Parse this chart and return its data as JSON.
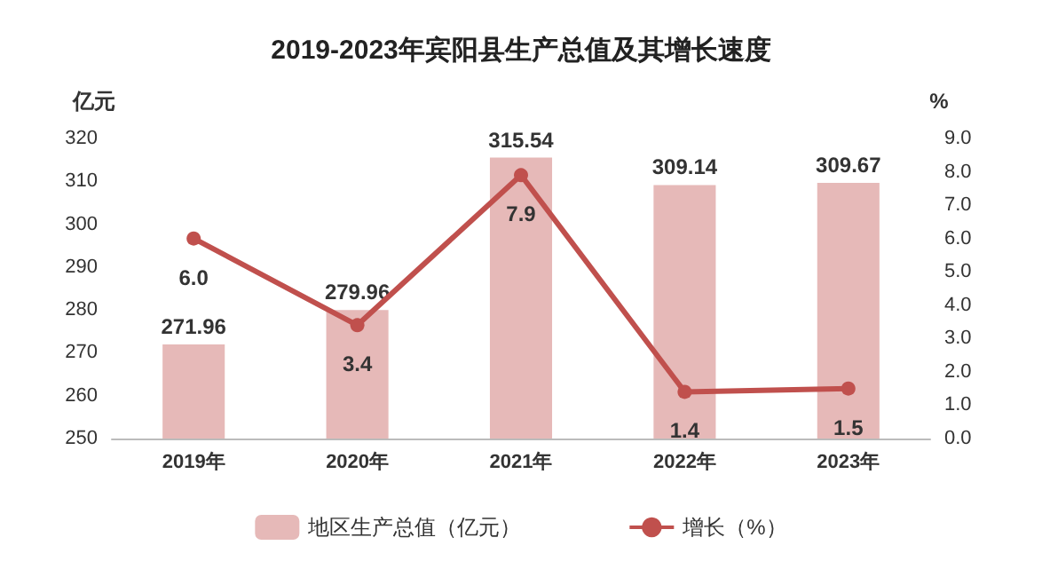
{
  "chart_data": {
    "type": "bar",
    "title": "2019-2023年宾阳县生产总值及其增长速度",
    "categories": [
      "2019年",
      "2020年",
      "2021年",
      "2022年",
      "2023年"
    ],
    "ylabel": "亿元",
    "y2label": "%",
    "ylim": [
      250,
      320
    ],
    "yticks": [
      250,
      260,
      270,
      280,
      290,
      300,
      310,
      320
    ],
    "y2lim": [
      0,
      9
    ],
    "y2ticks": [
      {
        "value": 0,
        "label": "0.0"
      },
      {
        "value": 1,
        "label": "1.0"
      },
      {
        "value": 2,
        "label": "2.0"
      },
      {
        "value": 3,
        "label": "3.0"
      },
      {
        "value": 4,
        "label": "4.0"
      },
      {
        "value": 5,
        "label": "5.0"
      },
      {
        "value": 6,
        "label": "6.0"
      },
      {
        "value": 7,
        "label": "7.0"
      },
      {
        "value": 8,
        "label": "8.0"
      },
      {
        "value": 9,
        "label": "9.0"
      }
    ],
    "series": [
      {
        "name": "地区生产总值（亿元）",
        "color": "#e6b9b8",
        "values": [
          271.96,
          279.96,
          315.54,
          309.14,
          309.67
        ],
        "value_labels": [
          "271.96",
          "279.96",
          "315.54",
          "309.14",
          "309.67"
        ]
      },
      {
        "name": "增长（%）",
        "type": "line",
        "axis": "y2",
        "color": "#c0504d",
        "values": [
          6.0,
          3.4,
          7.9,
          1.4,
          1.5
        ],
        "value_labels": [
          "6.0",
          "3.4",
          "7.9",
          "1.4",
          "1.5"
        ]
      }
    ],
    "legend": "bottom",
    "marker": "circle",
    "grid": false
  }
}
